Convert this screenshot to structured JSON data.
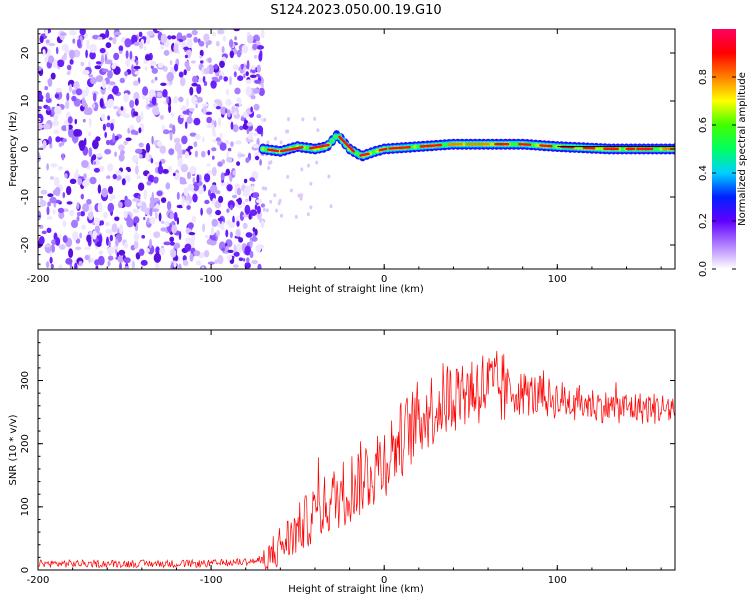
{
  "title": "S124.2023.050.00.19.G10",
  "chart_data": [
    {
      "type": "heatmap",
      "xlabel": "Height of straight line (km)",
      "ylabel": "Frequency (Hz)",
      "xlim": [
        -200,
        168
      ],
      "ylim": [
        -25,
        25
      ],
      "xticks": [
        -200,
        -100,
        0,
        100
      ],
      "yticks": [
        -20,
        -10,
        0,
        10,
        20
      ],
      "colorbar": {
        "label": "Normalized spectral amplitude",
        "range": [
          0,
          1
        ],
        "ticks": [
          0.0,
          0.2,
          0.4,
          0.6,
          0.8
        ],
        "colors": [
          "#ffffff",
          "#b080ff",
          "#6000ff",
          "#0020ff",
          "#00d0ff",
          "#00ff60",
          "#40ff00",
          "#ffff00",
          "#ff8000",
          "#ff0000",
          "#ff0060"
        ]
      },
      "noise_region_x": [
        -200,
        -70
      ],
      "signal_trace": [
        {
          "x": -70,
          "y": 0.0
        },
        {
          "x": -60,
          "y": -0.5
        },
        {
          "x": -50,
          "y": 0.5
        },
        {
          "x": -40,
          "y": 0.0
        },
        {
          "x": -33,
          "y": 0.5
        },
        {
          "x": -27,
          "y": 3.0
        },
        {
          "x": -20,
          "y": 0.0
        },
        {
          "x": -13,
          "y": -1.5
        },
        {
          "x": -5,
          "y": -0.5
        },
        {
          "x": 0,
          "y": 0.0
        },
        {
          "x": 20,
          "y": 0.5
        },
        {
          "x": 40,
          "y": 1.0
        },
        {
          "x": 60,
          "y": 1.0
        },
        {
          "x": 80,
          "y": 1.0
        },
        {
          "x": 100,
          "y": 0.5
        },
        {
          "x": 130,
          "y": 0.0
        },
        {
          "x": 168,
          "y": 0.0
        }
      ]
    },
    {
      "type": "line",
      "xlabel": "Height of straight line (km)",
      "ylabel": "SNR (10 * v/v)",
      "xlim": [
        -200,
        168
      ],
      "ylim": [
        0,
        380
      ],
      "xticks": [
        -200,
        -100,
        0,
        100
      ],
      "yticks": [
        0,
        100,
        200,
        300
      ],
      "color": "#ff0000",
      "envelope": [
        {
          "x": -200,
          "y": 10
        },
        {
          "x": -100,
          "y": 10
        },
        {
          "x": -70,
          "y": 15
        },
        {
          "x": -55,
          "y": 50
        },
        {
          "x": -40,
          "y": 90
        },
        {
          "x": -20,
          "y": 130
        },
        {
          "x": 0,
          "y": 175
        },
        {
          "x": 20,
          "y": 240
        },
        {
          "x": 40,
          "y": 280
        },
        {
          "x": 55,
          "y": 290
        },
        {
          "x": 70,
          "y": 285
        },
        {
          "x": 100,
          "y": 270
        },
        {
          "x": 130,
          "y": 258
        },
        {
          "x": 168,
          "y": 255
        }
      ]
    }
  ]
}
